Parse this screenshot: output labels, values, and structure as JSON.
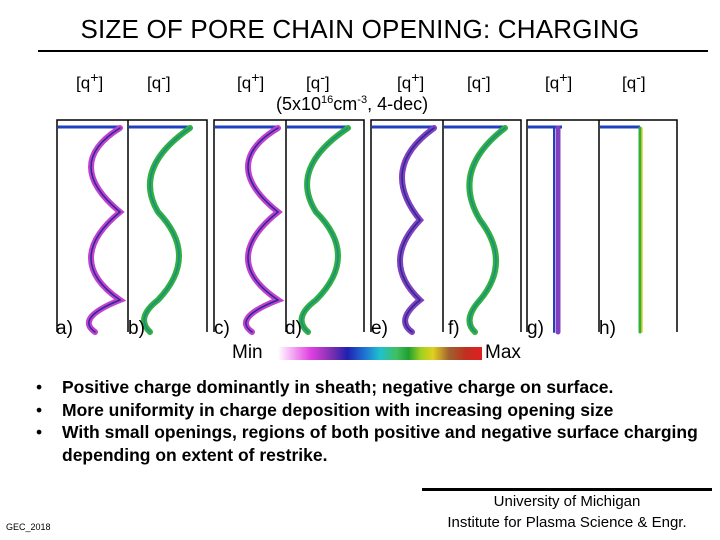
{
  "title": "SIZE OF PORE CHAIN OPENING: CHARGING",
  "headers": [
    {
      "pos": "[q",
      "pos_sup": "+",
      "neg": "[q",
      "neg_sup": "-"
    },
    {
      "pos": "[q",
      "pos_sup": "+",
      "neg": "[q",
      "neg_sup": "-"
    },
    {
      "pos": "[q",
      "pos_sup": "+",
      "neg": "[q",
      "neg_sup": "-"
    },
    {
      "pos": "[q",
      "pos_sup": "+",
      "neg": "[q",
      "neg_sup": "-"
    }
  ],
  "concentration": {
    "base": "(5x10",
    "exp1": "16",
    "unit": "cm",
    "exp2": "-3",
    "tail": ", 4-dec)"
  },
  "panel_labels": [
    "a)",
    "b)",
    "c)",
    "d)",
    "e)",
    "f)",
    "g)",
    "h)"
  ],
  "colorbar": {
    "min_label": "Min",
    "max_label": "Max"
  },
  "bullets": [
    "Positive charge dominantly in sheath; negative charge on surface.",
    "More uniformity in charge deposition with increasing opening size",
    "With small openings, regions of both positive and negative surface charging depending on extent of restrike."
  ],
  "footer": {
    "line1": "University of Michigan",
    "line2": "Institute for Plasma Science & Engr."
  },
  "author_tag": "GEC_2018"
}
